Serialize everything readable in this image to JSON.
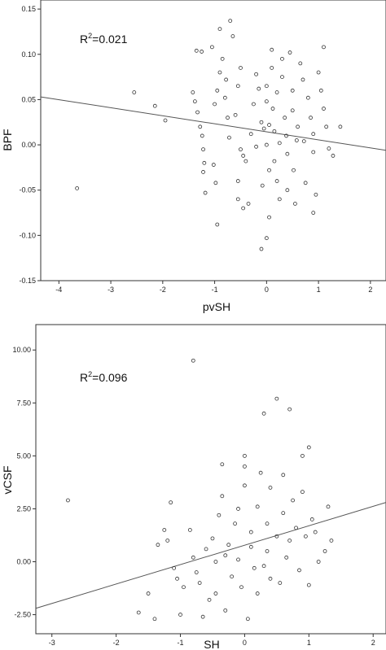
{
  "chart_data": [
    {
      "type": "scatter",
      "title": "",
      "xlabel": "pvSH",
      "ylabel": "BPF",
      "xlim": [
        -4.35,
        2.3
      ],
      "ylim": [
        -0.15,
        0.16
      ],
      "x_ticks": [
        -4,
        -3,
        -2,
        -1,
        0,
        1,
        2
      ],
      "y_ticks": [
        -0.15,
        -0.1,
        -0.05,
        0.0,
        0.05,
        0.1,
        0.15
      ],
      "x_tick_labels": [
        "-4",
        "-3",
        "-2",
        "-1",
        "0",
        "1",
        "2"
      ],
      "y_tick_labels": [
        "-0.15",
        "-0.10",
        "-0.05",
        "0.00",
        "0.05",
        "0.10",
        "0.15"
      ],
      "annotation": {
        "prefix": "R",
        "sup": "2",
        "suffix": "=0.021"
      },
      "fit_line": {
        "x": [
          -4.35,
          2.3
        ],
        "y": [
          0.053,
          -0.006
        ]
      },
      "grid": false,
      "legend": "none",
      "points": [
        [
          -3.65,
          -0.048
        ],
        [
          -2.55,
          0.058
        ],
        [
          -2.15,
          0.043
        ],
        [
          -1.95,
          0.027
        ],
        [
          -1.35,
          0.104
        ],
        [
          -1.25,
          0.103
        ],
        [
          -1.42,
          0.058
        ],
        [
          -1.38,
          0.048
        ],
        [
          -1.33,
          0.036
        ],
        [
          -1.28,
          0.02
        ],
        [
          -1.24,
          0.01
        ],
        [
          -1.22,
          -0.005
        ],
        [
          -1.2,
          -0.02
        ],
        [
          -1.22,
          -0.03
        ],
        [
          -1.18,
          -0.053
        ],
        [
          -1.05,
          0.108
        ],
        [
          -0.9,
          0.128
        ],
        [
          -0.9,
          0.08
        ],
        [
          -0.95,
          0.06
        ],
        [
          -1.0,
          0.045
        ],
        [
          -1.02,
          -0.022
        ],
        [
          -0.98,
          -0.042
        ],
        [
          -0.95,
          -0.088
        ],
        [
          -0.85,
          0.095
        ],
        [
          -0.7,
          0.137
        ],
        [
          -0.65,
          0.12
        ],
        [
          -0.78,
          0.072
        ],
        [
          -0.8,
          0.052
        ],
        [
          -0.75,
          0.03
        ],
        [
          -0.72,
          0.008
        ],
        [
          -0.6,
          0.033
        ],
        [
          -0.55,
          0.065
        ],
        [
          -0.5,
          0.085
        ],
        [
          -0.5,
          -0.005
        ],
        [
          -0.45,
          -0.012
        ],
        [
          -0.4,
          -0.018
        ],
        [
          -0.55,
          -0.04
        ],
        [
          -0.55,
          -0.06
        ],
        [
          -0.45,
          -0.07
        ],
        [
          -0.35,
          -0.065
        ],
        [
          -0.3,
          0.012
        ],
        [
          -0.25,
          0.045
        ],
        [
          -0.2,
          0.078
        ],
        [
          -0.15,
          0.062
        ],
        [
          -0.1,
          0.025
        ],
        [
          -0.08,
          -0.045
        ],
        [
          -0.05,
          0.018
        ],
        [
          0.0,
          0.065
        ],
        [
          0.0,
          0.048
        ],
        [
          0.05,
          0.022
        ],
        [
          0.05,
          -0.028
        ],
        [
          0.05,
          -0.08
        ],
        [
          0.0,
          -0.103
        ],
        [
          -0.1,
          -0.115
        ],
        [
          0.1,
          0.105
        ],
        [
          0.1,
          0.085
        ],
        [
          0.12,
          0.04
        ],
        [
          0.15,
          0.015
        ],
        [
          0.15,
          -0.018
        ],
        [
          0.2,
          -0.04
        ],
        [
          0.2,
          0.058
        ],
        [
          0.25,
          -0.06
        ],
        [
          0.3,
          0.095
        ],
        [
          0.3,
          0.075
        ],
        [
          0.35,
          0.03
        ],
        [
          0.38,
          0.01
        ],
        [
          0.4,
          -0.01
        ],
        [
          0.4,
          -0.05
        ],
        [
          0.45,
          0.102
        ],
        [
          0.5,
          0.06
        ],
        [
          0.5,
          0.038
        ],
        [
          0.52,
          -0.028
        ],
        [
          0.55,
          -0.065
        ],
        [
          0.6,
          0.02
        ],
        [
          0.65,
          0.09
        ],
        [
          0.7,
          0.072
        ],
        [
          0.72,
          0.004
        ],
        [
          0.75,
          -0.042
        ],
        [
          0.8,
          0.052
        ],
        [
          0.85,
          0.03
        ],
        [
          0.9,
          0.012
        ],
        [
          0.9,
          -0.008
        ],
        [
          0.95,
          -0.055
        ],
        [
          0.9,
          -0.075
        ],
        [
          1.0,
          0.08
        ],
        [
          1.05,
          0.06
        ],
        [
          1.1,
          0.108
        ],
        [
          1.1,
          0.04
        ],
        [
          1.15,
          0.02
        ],
        [
          1.2,
          -0.004
        ],
        [
          1.28,
          -0.012
        ],
        [
          1.42,
          0.02
        ],
        [
          0.58,
          0.005
        ],
        [
          0.25,
          0.002
        ],
        [
          -0.2,
          -0.002
        ],
        [
          0.0,
          0.0
        ]
      ]
    },
    {
      "type": "scatter",
      "title": "",
      "xlabel": "SH",
      "ylabel": "vCSF",
      "xlim": [
        -3.25,
        2.2
      ],
      "ylim": [
        -3.4,
        11.2
      ],
      "x_ticks": [
        -3,
        -2,
        -1,
        0,
        1,
        2
      ],
      "y_ticks": [
        -2.5,
        0.0,
        2.5,
        5.0,
        7.5,
        10.0
      ],
      "x_tick_labels": [
        "-3",
        "-2",
        "-1",
        "0",
        "1",
        "2"
      ],
      "y_tick_labels": [
        "-2.50",
        "0.00",
        "2.50",
        "5.00",
        "7.50",
        "10.00"
      ],
      "annotation": {
        "prefix": "R",
        "sup": "2",
        "suffix": "=0.096"
      },
      "fit_line": {
        "x": [
          -3.25,
          2.2
        ],
        "y": [
          -2.2,
          2.8
        ]
      },
      "grid": false,
      "legend": "none",
      "points": [
        [
          -2.75,
          2.9
        ],
        [
          -1.65,
          -2.4
        ],
        [
          -1.4,
          -2.7
        ],
        [
          -1.5,
          -1.5
        ],
        [
          -1.35,
          0.8
        ],
        [
          -1.2,
          1.0
        ],
        [
          -1.15,
          2.8
        ],
        [
          -1.25,
          1.5
        ],
        [
          -1.1,
          -0.3
        ],
        [
          -1.05,
          -0.8
        ],
        [
          -0.95,
          -1.2
        ],
        [
          -1.0,
          -2.5
        ],
        [
          -0.85,
          1.5
        ],
        [
          -0.8,
          0.2
        ],
        [
          -0.75,
          -0.5
        ],
        [
          -0.7,
          -1.0
        ],
        [
          -0.65,
          -2.6
        ],
        [
          -0.8,
          9.5
        ],
        [
          -0.6,
          0.6
        ],
        [
          -0.55,
          -1.8
        ],
        [
          -0.5,
          1.1
        ],
        [
          -0.45,
          0.0
        ],
        [
          -0.45,
          -1.5
        ],
        [
          -0.4,
          2.2
        ],
        [
          -0.35,
          4.6
        ],
        [
          -0.35,
          3.1
        ],
        [
          -0.3,
          -2.3
        ],
        [
          -0.25,
          0.8
        ],
        [
          -0.2,
          -0.7
        ],
        [
          -0.15,
          1.8
        ],
        [
          -0.1,
          2.5
        ],
        [
          -0.1,
          0.1
        ],
        [
          -0.05,
          -1.2
        ],
        [
          0.0,
          5.0
        ],
        [
          0.0,
          4.5
        ],
        [
          0.0,
          3.6
        ],
        [
          0.05,
          -2.7
        ],
        [
          0.1,
          1.4
        ],
        [
          0.1,
          0.7
        ],
        [
          0.15,
          -0.3
        ],
        [
          0.2,
          -1.5
        ],
        [
          0.2,
          2.6
        ],
        [
          0.25,
          4.2
        ],
        [
          0.3,
          7.0
        ],
        [
          0.35,
          1.8
        ],
        [
          0.35,
          0.5
        ],
        [
          0.4,
          -0.8
        ],
        [
          0.4,
          3.5
        ],
        [
          0.5,
          7.7
        ],
        [
          0.5,
          1.2
        ],
        [
          0.55,
          -1.0
        ],
        [
          0.6,
          2.3
        ],
        [
          0.6,
          4.1
        ],
        [
          0.65,
          0.2
        ],
        [
          0.7,
          1.0
        ],
        [
          0.75,
          2.9
        ],
        [
          0.7,
          7.2
        ],
        [
          0.8,
          1.6
        ],
        [
          0.85,
          -0.4
        ],
        [
          0.9,
          3.3
        ],
        [
          0.9,
          5.0
        ],
        [
          0.95,
          1.2
        ],
        [
          1.0,
          5.4
        ],
        [
          1.0,
          -1.1
        ],
        [
          1.05,
          2.0
        ],
        [
          1.1,
          1.4
        ],
        [
          1.15,
          0.0
        ],
        [
          1.3,
          2.6
        ],
        [
          1.35,
          1.0
        ],
        [
          1.25,
          0.5
        ],
        [
          -0.3,
          0.3
        ],
        [
          0.3,
          -0.2
        ]
      ]
    }
  ]
}
